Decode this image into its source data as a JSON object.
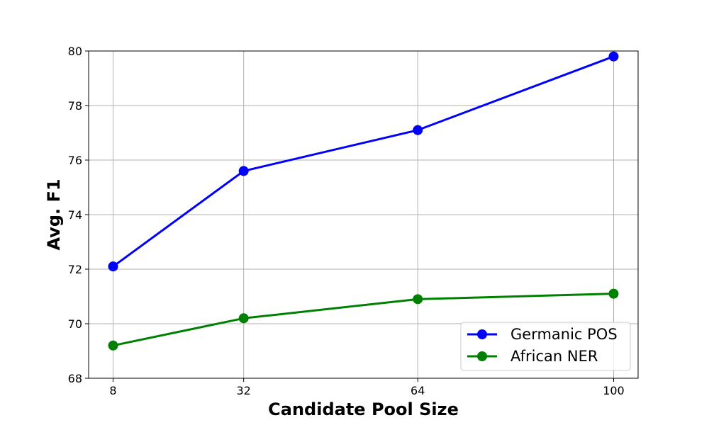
{
  "chart_data": {
    "type": "line",
    "x": [
      8,
      32,
      64,
      100
    ],
    "x_tick_labels": [
      "8",
      "32",
      "64",
      "100"
    ],
    "xlim": [
      3.5,
      104.5
    ],
    "ylim": [
      68,
      80
    ],
    "y_ticks": [
      68,
      70,
      72,
      74,
      76,
      78,
      80
    ],
    "xlabel": "Candidate Pool Size",
    "ylabel": "Avg. F1",
    "grid": true,
    "legend_position": "bottom-right",
    "series": [
      {
        "name": "Germanic POS",
        "color": "#0000ff",
        "marker": "circle",
        "values": [
          72.1,
          75.6,
          77.1,
          79.8
        ]
      },
      {
        "name": "African NER",
        "color": "#008000",
        "marker": "circle",
        "values": [
          69.2,
          70.2,
          70.9,
          71.1
        ]
      }
    ]
  }
}
